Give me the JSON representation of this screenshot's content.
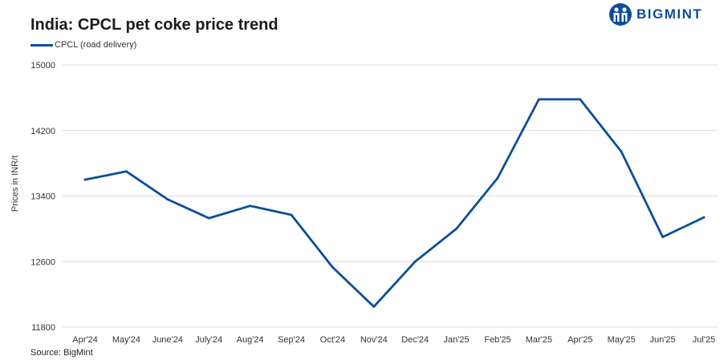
{
  "header": {
    "title": "India: CPCL pet coke price trend",
    "brand": "BIGMINT"
  },
  "footer": {
    "source": "Source: BigMint"
  },
  "colors": {
    "series": "#0b4e9b",
    "grid": "#d9d9d9",
    "brand": "#0b4e9b"
  },
  "chart_data": {
    "type": "line",
    "title": "India: CPCL pet coke price trend",
    "xlabel": "",
    "ylabel": "Prices in INR/t",
    "ylim": [
      11800,
      15000
    ],
    "yticks": [
      "11800",
      "12600",
      "13400",
      "14200",
      "15000"
    ],
    "grid": "horizontal",
    "legend_position": "top-left",
    "categories": [
      "Apr'24",
      "May'24",
      "June'24",
      "July'24",
      "Aug'24",
      "Sep'24",
      "Oct'24",
      "Nov'24",
      "Dec'24",
      "Jan'25",
      "Feb'25",
      "Mar'25",
      "Apr'25",
      "May'25",
      "Jun'25",
      "Jul'25"
    ],
    "series": [
      {
        "name": "CPCL (road delivery)",
        "values": [
          13600,
          13700,
          13360,
          13130,
          13280,
          13170,
          12530,
          12050,
          12600,
          13000,
          13620,
          14580,
          14580,
          13940,
          12900,
          13140
        ]
      }
    ]
  }
}
